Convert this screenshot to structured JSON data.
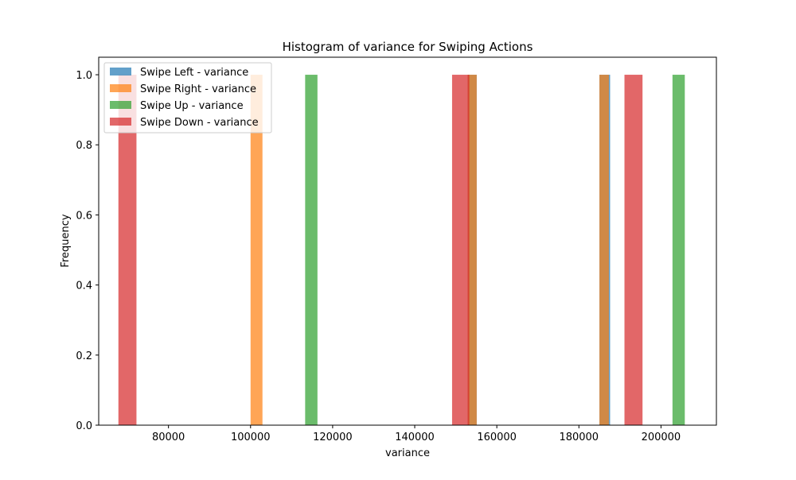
{
  "chart_data": {
    "type": "histogram",
    "title": "Histogram of variance for Swiping Actions",
    "xlabel": "variance",
    "ylabel": "Frequency",
    "xlim": [
      63000,
      213500
    ],
    "ylim": [
      0,
      1.05
    ],
    "xticks": [
      80000,
      100000,
      120000,
      140000,
      160000,
      180000,
      200000
    ],
    "xtick_labels": [
      "80000",
      "100000",
      "120000",
      "140000",
      "160000",
      "180000",
      "200000"
    ],
    "yticks": [
      0.0,
      0.2,
      0.4,
      0.6,
      0.8,
      1.0
    ],
    "ytick_labels": [
      "0.0",
      "0.2",
      "0.4",
      "0.6",
      "0.8",
      "1.0"
    ],
    "grid": false,
    "legend_position": "upper-left",
    "series": [
      {
        "name": "Swipe Left - variance",
        "color": "#1f77b4",
        "bins": [
          {
            "x0": 152900,
            "x1": 155100,
            "count": 1
          },
          {
            "x0": 185000,
            "x1": 187600,
            "count": 1
          }
        ]
      },
      {
        "name": "Swipe Right - variance",
        "color": "#ff7f0e",
        "bins": [
          {
            "x0": 100000,
            "x1": 102900,
            "count": 1
          },
          {
            "x0": 152900,
            "x1": 155100,
            "count": 1
          },
          {
            "x0": 185000,
            "x1": 187300,
            "count": 1
          }
        ]
      },
      {
        "name": "Swipe Up - variance",
        "color": "#2ca02c",
        "bins": [
          {
            "x0": 113300,
            "x1": 116300,
            "count": 1
          },
          {
            "x0": 202800,
            "x1": 205800,
            "count": 1
          }
        ]
      },
      {
        "name": "Swipe Down - variance",
        "color": "#d62728",
        "bins": [
          {
            "x0": 67800,
            "x1": 72200,
            "count": 1
          },
          {
            "x0": 149100,
            "x1": 153300,
            "count": 1
          },
          {
            "x0": 191100,
            "x1": 195500,
            "count": 1
          }
        ]
      }
    ]
  }
}
